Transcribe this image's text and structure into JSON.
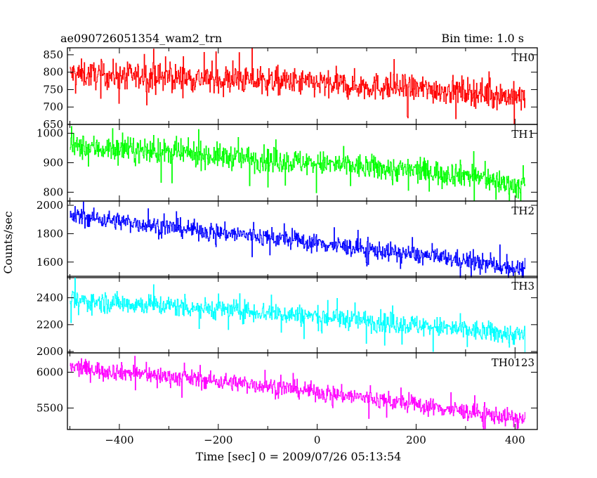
{
  "chart_data": {
    "type": "line",
    "title": "ae090726051354_wam2_trn",
    "bin_time": "Bin time: 1.0 s",
    "xlabel": "Time [sec] 0 = 2009/07/26 05:13:54",
    "ylabel": "Counts/sec",
    "xlim": [
      -505,
      445
    ],
    "x_ticks": [
      -400,
      -200,
      0,
      200,
      400
    ],
    "x_range_data": [
      -500,
      420
    ],
    "grid": false,
    "panels": [
      {
        "label": "TH0",
        "color": "#ff0000",
        "ylim": [
          650,
          870
        ],
        "y_ticks": [
          650,
          700,
          750,
          800,
          850
        ],
        "trend": [
          [
            -500,
            795
          ],
          [
            -300,
            785
          ],
          [
            -100,
            775
          ],
          [
            100,
            760
          ],
          [
            300,
            745
          ],
          [
            420,
            725
          ]
        ],
        "noise": 28
      },
      {
        "label": "TH1",
        "color": "#00ff00",
        "ylim": [
          770,
          1030
        ],
        "y_ticks": [
          800,
          900,
          1000
        ],
        "trend": [
          [
            -500,
            955
          ],
          [
            -300,
            935
          ],
          [
            -100,
            910
          ],
          [
            100,
            885
          ],
          [
            300,
            860
          ],
          [
            420,
            815
          ]
        ],
        "noise": 30
      },
      {
        "label": "TH2",
        "color": "#0000ff",
        "ylim": [
          1490,
          2030
        ],
        "y_ticks": [
          1600,
          1800,
          2000
        ],
        "trend": [
          [
            -500,
            1930
          ],
          [
            -300,
            1845
          ],
          [
            -100,
            1775
          ],
          [
            100,
            1690
          ],
          [
            300,
            1610
          ],
          [
            420,
            1545
          ]
        ],
        "noise": 45
      },
      {
        "label": "TH3",
        "color": "#00ffff",
        "ylim": [
          1990,
          2560
        ],
        "y_ticks": [
          2000,
          2200,
          2400
        ],
        "trend": [
          [
            -500,
            2380
          ],
          [
            -300,
            2340
          ],
          [
            -100,
            2290
          ],
          [
            100,
            2230
          ],
          [
            300,
            2160
          ],
          [
            420,
            2120
          ]
        ],
        "noise": 55
      },
      {
        "label": "TH0123",
        "color": "#ff00ff",
        "ylim": [
          5200,
          6270
        ],
        "y_ticks": [
          5500,
          6000
        ],
        "trend": [
          [
            -500,
            6070
          ],
          [
            -300,
            5940
          ],
          [
            -100,
            5810
          ],
          [
            100,
            5640
          ],
          [
            300,
            5450
          ],
          [
            420,
            5340
          ]
        ],
        "noise": 85
      }
    ]
  }
}
